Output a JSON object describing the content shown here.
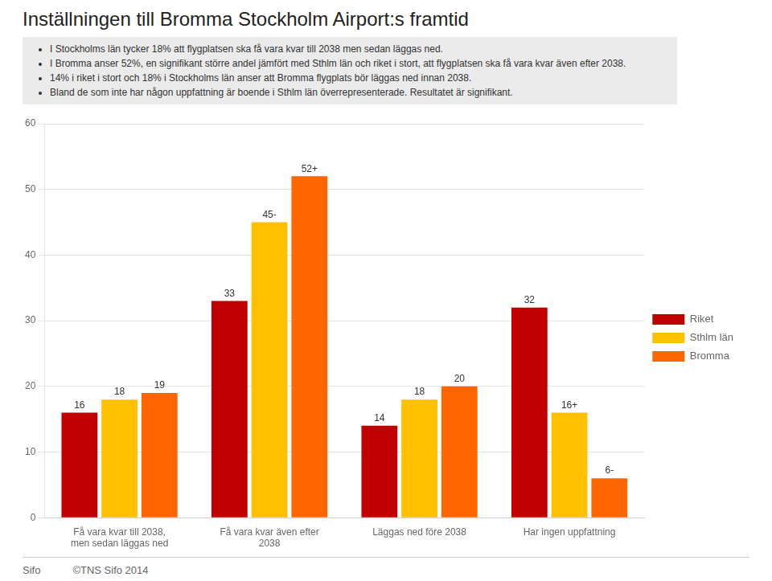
{
  "chart_data": {
    "type": "bar",
    "title": "Inställningen till Bromma Stockholm Airport:s framtid",
    "annotations": [
      [
        "I Stockholms län tycker 18% att flygplatsen ska få vara kvar till 2038 men sedan läggas ned.",
        "I Bromma anser 52%, en signifikant större andel jämfört med Sthlm län och riket i stort, att flygplatsen ska få vara kvar även efter 2038.",
        "14% i riket i stort och 18% i Stockholms län anser att Bromma flygplats bör läggas ned innan 2038.",
        "Bland de som inte har någon uppfattning är boende i Sthlm län överrepresenterade. Resultatet är signifikant."
      ],
      [
        "Sifo",
        "©TNS Sifo 2014"
      ]
    ],
    "categories": [
      "Få vara kvar till 2038,\nmen sedan läggas ned",
      "Få vara kvar även efter\n2038",
      "Läggas ned före 2038",
      "Har ingen uppfattning"
    ],
    "series": [
      {
        "name": "Riket",
        "color": "#C00000",
        "values": [
          16,
          33,
          14,
          32
        ],
        "value_labels": [
          "16",
          "33",
          "14",
          "32"
        ]
      },
      {
        "name": "Sthlm län",
        "color": "#FFC000",
        "values": [
          18,
          45,
          18,
          16
        ],
        "value_labels": [
          "18",
          "45-",
          "18",
          "16+"
        ]
      },
      {
        "name": "Bromma",
        "color": "#FF6600",
        "values": [
          19,
          52,
          20,
          6
        ],
        "value_labels": [
          "19",
          "52+",
          "20",
          "6-"
        ]
      }
    ],
    "ylim": [
      0,
      60
    ],
    "yticks": [
      0,
      10,
      20,
      30,
      40,
      50,
      60
    ],
    "grid": true,
    "legend": "right",
    "data_labels": true
  }
}
